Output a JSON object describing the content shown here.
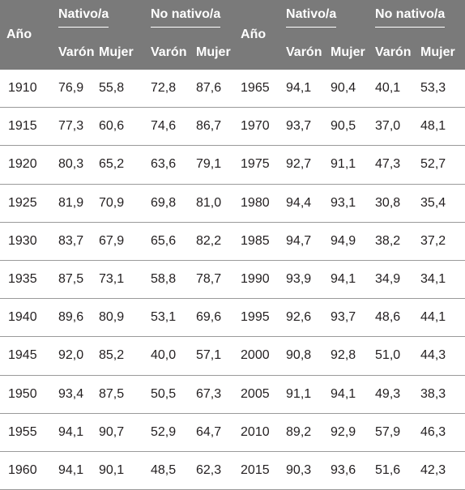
{
  "headers": {
    "year": "Año",
    "native": "Nativo/a",
    "non_native": "No nativo/a",
    "male": "Varón",
    "female": "Mujer"
  },
  "left_rows": [
    {
      "year": "1910",
      "native_male": "76,9",
      "native_female": "55,8",
      "nonnative_male": "72,8",
      "nonnative_female": "87,6"
    },
    {
      "year": "1915",
      "native_male": "77,3",
      "native_female": "60,6",
      "nonnative_male": "74,6",
      "nonnative_female": "86,7"
    },
    {
      "year": "1920",
      "native_male": "80,3",
      "native_female": "65,2",
      "nonnative_male": "63,6",
      "nonnative_female": "79,1"
    },
    {
      "year": "1925",
      "native_male": "81,9",
      "native_female": "70,9",
      "nonnative_male": "69,8",
      "nonnative_female": "81,0"
    },
    {
      "year": "1930",
      "native_male": "83,7",
      "native_female": "67,9",
      "nonnative_male": "65,6",
      "nonnative_female": "82,2"
    },
    {
      "year": "1935",
      "native_male": "87,5",
      "native_female": "73,1",
      "nonnative_male": "58,8",
      "nonnative_female": "78,7"
    },
    {
      "year": "1940",
      "native_male": "89,6",
      "native_female": "80,9",
      "nonnative_male": "53,1",
      "nonnative_female": "69,6"
    },
    {
      "year": "1945",
      "native_male": "92,0",
      "native_female": "85,2",
      "nonnative_male": "40,0",
      "nonnative_female": "57,1"
    },
    {
      "year": "1950",
      "native_male": "93,4",
      "native_female": "87,5",
      "nonnative_male": "50,5",
      "nonnative_female": "67,3"
    },
    {
      "year": "1955",
      "native_male": "94,1",
      "native_female": "90,7",
      "nonnative_male": "52,9",
      "nonnative_female": "64,7"
    },
    {
      "year": "1960",
      "native_male": "94,1",
      "native_female": "90,1",
      "nonnative_male": "48,5",
      "nonnative_female": "62,3"
    }
  ],
  "right_rows": [
    {
      "year": "1965",
      "native_male": "94,1",
      "native_female": "90,4",
      "nonnative_male": "40,1",
      "nonnative_female": "53,3"
    },
    {
      "year": "1970",
      "native_male": "93,7",
      "native_female": "90,5",
      "nonnative_male": "37,0",
      "nonnative_female": "48,1"
    },
    {
      "year": "1975",
      "native_male": "92,7",
      "native_female": "91,1",
      "nonnative_male": "47,3",
      "nonnative_female": "52,7"
    },
    {
      "year": "1980",
      "native_male": "94,4",
      "native_female": "93,1",
      "nonnative_male": "30,8",
      "nonnative_female": "35,4"
    },
    {
      "year": "1985",
      "native_male": "94,7",
      "native_female": "94,9",
      "nonnative_male": "38,2",
      "nonnative_female": "37,2"
    },
    {
      "year": "1990",
      "native_male": "93,9",
      "native_female": "94,1",
      "nonnative_male": "34,9",
      "nonnative_female": "34,1"
    },
    {
      "year": "1995",
      "native_male": "92,6",
      "native_female": "93,7",
      "nonnative_male": "48,6",
      "nonnative_female": "44,1"
    },
    {
      "year": "2000",
      "native_male": "90,8",
      "native_female": "92,8",
      "nonnative_male": "51,0",
      "nonnative_female": "44,3"
    },
    {
      "year": "2005",
      "native_male": "91,1",
      "native_female": "94,1",
      "nonnative_male": "49,3",
      "nonnative_female": "38,3"
    },
    {
      "year": "2010",
      "native_male": "89,2",
      "native_female": "92,9",
      "nonnative_male": "57,9",
      "nonnative_female": "46,3"
    },
    {
      "year": "2015",
      "native_male": "90,3",
      "native_female": "93,6",
      "nonnative_male": "51,6",
      "nonnative_female": "42,3"
    }
  ],
  "colors": {
    "header_bg": "#7a7a7a",
    "header_text": "#ffffff",
    "body_text": "#231f20",
    "row_divider": "#9a9a9a"
  }
}
